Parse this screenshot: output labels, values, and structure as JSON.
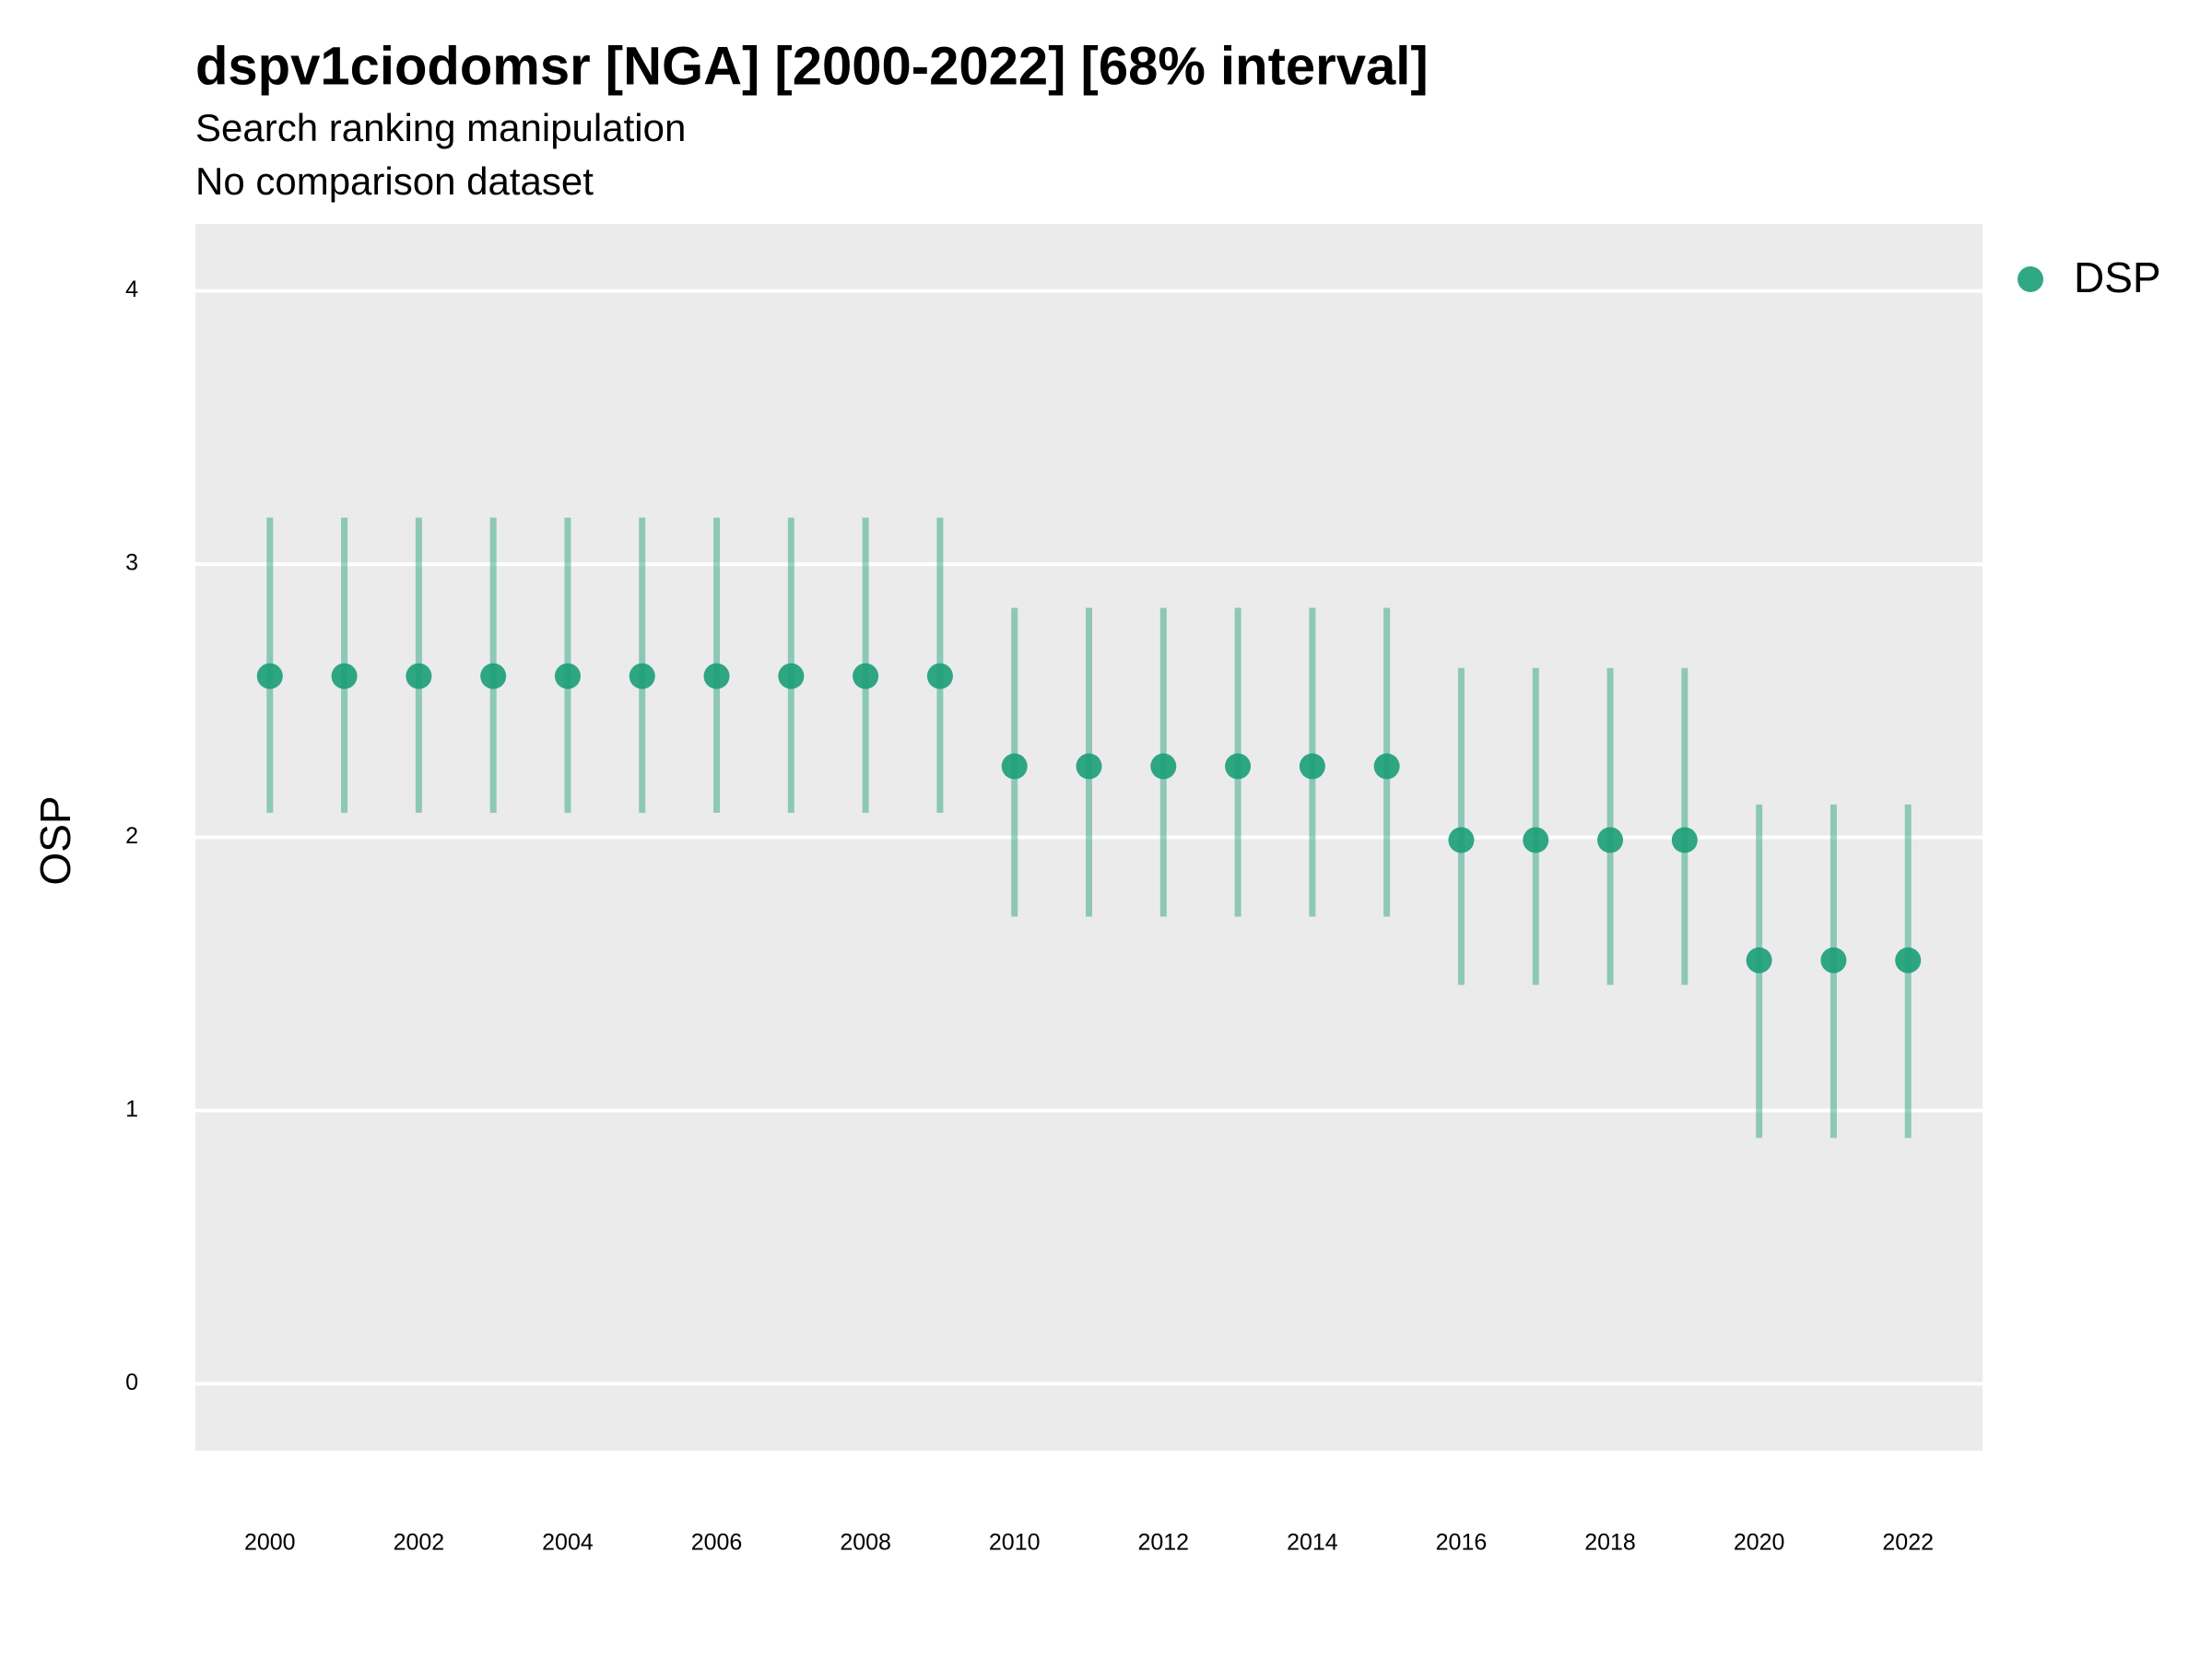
{
  "chart_data": {
    "type": "pointrange",
    "title": "dspv1ciodomsr [NGA] [2000-2022] [68% interval]",
    "subtitle": [
      "Search ranking manipulation",
      "No comparison dataset"
    ],
    "y_label": "OSP",
    "x": [
      2000,
      2001,
      2002,
      2003,
      2004,
      2005,
      2006,
      2007,
      2008,
      2009,
      2010,
      2011,
      2012,
      2013,
      2014,
      2015,
      2016,
      2017,
      2018,
      2019,
      2020,
      2021,
      2022
    ],
    "series": [
      {
        "name": "DSP",
        "color": "#1b9e77",
        "values": [
          2.59,
          2.59,
          2.59,
          2.59,
          2.59,
          2.59,
          2.59,
          2.59,
          2.59,
          2.59,
          2.26,
          2.26,
          2.26,
          2.26,
          2.26,
          2.26,
          1.99,
          1.99,
          1.99,
          1.99,
          1.55,
          1.55,
          1.55
        ],
        "upper": [
          3.17,
          3.17,
          3.17,
          3.17,
          3.17,
          3.17,
          3.17,
          3.17,
          3.17,
          3.17,
          2.84,
          2.84,
          2.84,
          2.84,
          2.84,
          2.84,
          2.62,
          2.62,
          2.62,
          2.62,
          2.12,
          2.12,
          2.12
        ],
        "lower": [
          2.09,
          2.09,
          2.09,
          2.09,
          2.09,
          2.09,
          2.09,
          2.09,
          2.09,
          2.09,
          1.71,
          1.71,
          1.71,
          1.71,
          1.71,
          1.71,
          1.46,
          1.46,
          1.46,
          1.46,
          0.9,
          0.9,
          0.9
        ]
      }
    ],
    "xlim": [
      1999,
      2023
    ],
    "xticks": [
      2000,
      2002,
      2004,
      2006,
      2008,
      2010,
      2012,
      2014,
      2016,
      2018,
      2020,
      2022
    ],
    "ylim": [
      -0.245,
      4.245
    ],
    "yticks": [
      0,
      1,
      2,
      3,
      4
    ],
    "grid": true,
    "legend": "right"
  }
}
